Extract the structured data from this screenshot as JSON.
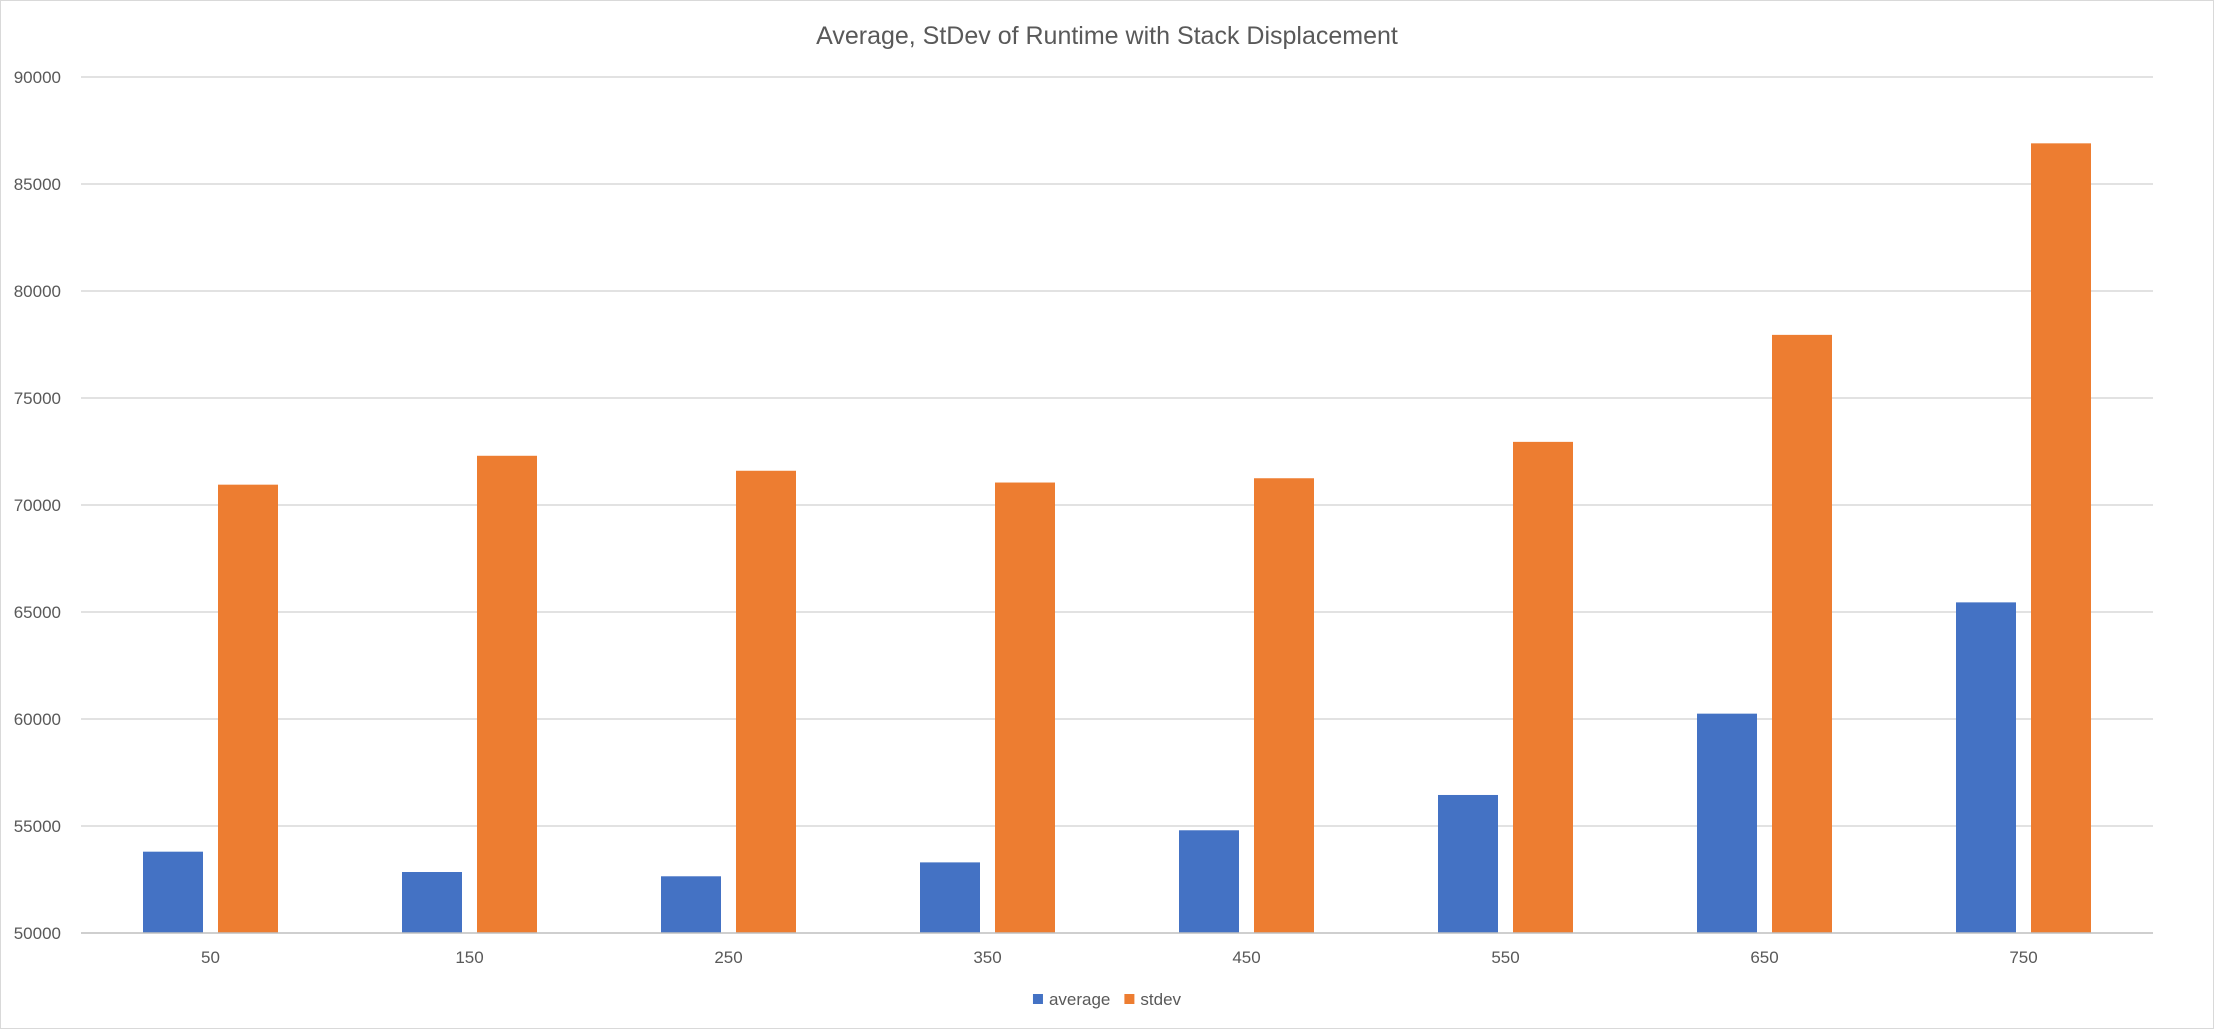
{
  "chart_data": {
    "type": "bar",
    "title": "Average, StDev of Runtime with Stack Displacement",
    "xlabel": "",
    "ylabel": "",
    "categories": [
      "50",
      "150",
      "250",
      "350",
      "450",
      "550",
      "650",
      "750"
    ],
    "series": [
      {
        "name": "average",
        "color": "#4472c4",
        "values": [
          53800,
          52850,
          52650,
          53300,
          54800,
          56450,
          60250,
          65450
        ]
      },
      {
        "name": "stdev",
        "color": "#ed7d31",
        "values": [
          70950,
          72300,
          71600,
          71050,
          71250,
          72950,
          77950,
          86900
        ]
      }
    ],
    "ylim": [
      50000,
      90000
    ],
    "yticks": [
      50000,
      55000,
      60000,
      65000,
      70000,
      75000,
      80000,
      85000,
      90000
    ],
    "grid": true,
    "legend_position": "bottom"
  }
}
